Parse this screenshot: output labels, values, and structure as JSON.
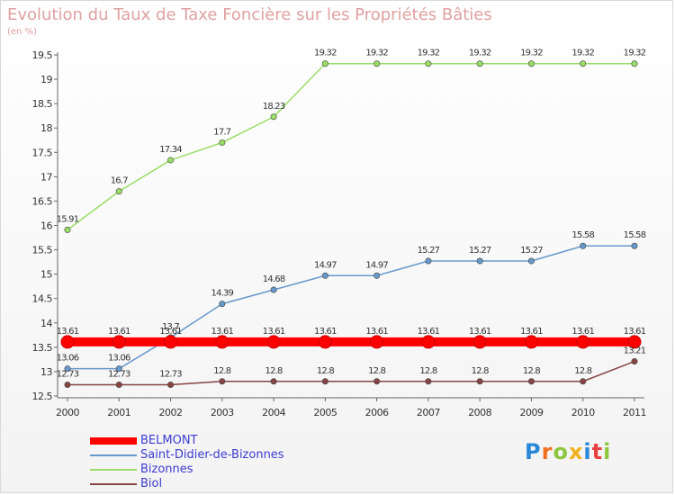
{
  "title": "Evolution du Taux de Taxe Foncière sur les Propriétés Bâties",
  "unit_label": "(en %)",
  "logo": {
    "text": "Proxiti",
    "letters": [
      {
        "char": "P",
        "color": "#2a88d8"
      },
      {
        "char": "r",
        "color": "#f07020"
      },
      {
        "char": "o",
        "color": "#8cc63f"
      },
      {
        "char": "x",
        "color": "#f0b020"
      },
      {
        "char": "i",
        "color": "#2a88d8"
      },
      {
        "char": "t",
        "color": "#e84040"
      },
      {
        "char": "i",
        "color": "#8cc63f"
      }
    ]
  },
  "chart_data": {
    "type": "line",
    "x": [
      "2000",
      "2001",
      "2002",
      "2003",
      "2004",
      "2005",
      "2006",
      "2007",
      "2008",
      "2009",
      "2010",
      "2011"
    ],
    "ylim": [
      12.5,
      19.5
    ],
    "yticks": [
      "12.5",
      "13",
      "13.5",
      "14",
      "14.5",
      "15",
      "15.5",
      "16",
      "16.5",
      "17",
      "17.5",
      "18",
      "18.5",
      "19",
      "19.5"
    ],
    "grid": false,
    "legend_position": "bottom-left",
    "series": [
      {
        "name": "BELMONT",
        "color": "#ff0000",
        "values": [
          13.61,
          13.61,
          13.61,
          13.61,
          13.61,
          13.61,
          13.61,
          13.61,
          13.61,
          13.61,
          13.61,
          13.61
        ],
        "labels": [
          "13.61",
          "13.61",
          "13.61",
          "13.61",
          "13.61",
          "13.61",
          "13.61",
          "13.61",
          "13.61",
          "13.61",
          "13.61",
          "13.61"
        ]
      },
      {
        "name": "Saint-Didier-de-Bizonnes",
        "color": "#6699cc",
        "values": [
          13.06,
          13.06,
          13.7,
          14.39,
          14.68,
          14.97,
          14.97,
          15.27,
          15.27,
          15.27,
          15.58,
          15.58
        ],
        "labels": [
          "13.06",
          "13.06",
          "13.7",
          "14.39",
          "14.68",
          "14.97",
          "14.97",
          "15.27",
          "15.27",
          "15.27",
          "15.58",
          "15.58"
        ]
      },
      {
        "name": "Bizonnes",
        "color": "#99dd66",
        "values": [
          15.91,
          16.7,
          17.34,
          17.7,
          18.23,
          19.32,
          19.32,
          19.32,
          19.32,
          19.32,
          19.32,
          19.32
        ],
        "labels": [
          "15.91",
          "16.7",
          "17.34",
          "17.7",
          "18.23",
          "19.32",
          "19.32",
          "19.32",
          "19.32",
          "19.32",
          "19.32",
          "19.32"
        ]
      },
      {
        "name": "Biol",
        "color": "#884444",
        "values": [
          12.73,
          12.73,
          12.73,
          12.8,
          12.8,
          12.8,
          12.8,
          12.8,
          12.8,
          12.8,
          12.8,
          13.21
        ],
        "labels": [
          "12.73",
          "12.73",
          "12.73",
          "12.8",
          "12.8",
          "12.8",
          "12.8",
          "12.8",
          "12.8",
          "12.8",
          "12.8",
          "13.21"
        ]
      }
    ]
  }
}
